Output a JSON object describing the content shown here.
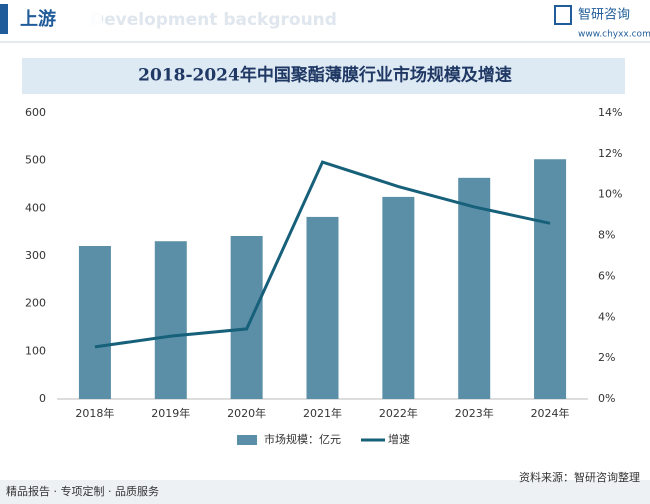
{
  "header": {
    "section": "上游",
    "subtitle": "Development background",
    "brand": "智研咨询",
    "url": "www.chyxx.com"
  },
  "chart_data": {
    "type": "bar-line",
    "title": "2018-2024年中国聚酯薄膜行业市场规模及增速",
    "categories": [
      "2018年",
      "2019年",
      "2020年",
      "2021年",
      "2022年",
      "2023年",
      "2024年"
    ],
    "series": [
      {
        "name": "市场规模：亿元",
        "type": "bar",
        "color": "#5b8fa8",
        "values": [
          321,
          331,
          342,
          382,
          424,
          464,
          503
        ]
      },
      {
        "name": "增速",
        "type": "line",
        "axis": "y2",
        "color": "#17607a",
        "values": [
          2.55,
          3.08,
          3.43,
          11.6,
          10.4,
          9.4,
          8.6
        ]
      }
    ],
    "ylim": [
      0,
      600
    ],
    "yticks": [
      0,
      100,
      200,
      300,
      400,
      500,
      600
    ],
    "y2lim": [
      0,
      14
    ],
    "y2ticks": [
      {
        "value": 0,
        "label": "0%"
      },
      {
        "value": 2,
        "label": "2%"
      },
      {
        "value": 4,
        "label": "4%"
      },
      {
        "value": 6,
        "label": "6%"
      },
      {
        "value": 8,
        "label": "8%"
      },
      {
        "value": 10,
        "label": "10%"
      },
      {
        "value": 12,
        "label": "12%"
      },
      {
        "value": 14,
        "label": "14%"
      }
    ],
    "grid": false,
    "legend": "bottom"
  },
  "footer": {
    "slogan": "精品报告 · 专项定制 · 品质服务",
    "source": "资料来源：智研咨询整理"
  }
}
